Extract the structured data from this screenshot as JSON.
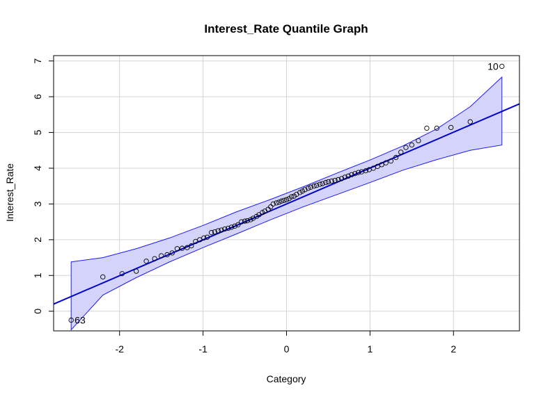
{
  "chart_data": {
    "type": "scatter",
    "title": "Interest_Rate Quantile Graph",
    "xlabel": "Category",
    "ylabel": "Interest_Rate",
    "xlim": [
      -2.79,
      2.79
    ],
    "ylim": [
      -0.55,
      7.15
    ],
    "xticks": [
      -2,
      -1,
      0,
      1,
      2
    ],
    "yticks": [
      0,
      1,
      2,
      3,
      4,
      5,
      6,
      7
    ],
    "grid": true,
    "colors": {
      "band_fill": "#d4d4fa",
      "band_line": "#1a1aff",
      "line": "#0000cc",
      "points": "#000000",
      "grid": "#d3d3d3"
    },
    "reference_line": {
      "x": [
        -2.79,
        2.79
      ],
      "y": [
        0.2,
        5.8
      ]
    },
    "confidence_band": {
      "x": [
        -2.58,
        -2.2,
        -1.8,
        -1.4,
        -1.0,
        -0.6,
        -0.2,
        0.2,
        0.6,
        1.0,
        1.4,
        1.8,
        2.2,
        2.58
      ],
      "upper": [
        1.38,
        1.5,
        1.75,
        2.05,
        2.4,
        2.78,
        3.12,
        3.48,
        3.86,
        4.23,
        4.63,
        5.1,
        5.72,
        6.55
      ],
      "lower": [
        -0.52,
        0.45,
        0.94,
        1.38,
        1.78,
        2.16,
        2.55,
        2.92,
        3.26,
        3.6,
        3.95,
        4.24,
        4.5,
        4.65
      ]
    },
    "points": {
      "x": [
        -2.58,
        -2.2,
        -1.97,
        -1.8,
        -1.68,
        -1.58,
        -1.5,
        -1.43,
        -1.37,
        -1.31,
        -1.25,
        -1.19,
        -1.14,
        -1.09,
        -1.04,
        -0.99,
        -0.95,
        -0.9,
        -0.86,
        -0.82,
        -0.78,
        -0.74,
        -0.7,
        -0.66,
        -0.62,
        -0.58,
        -0.54,
        -0.5,
        -0.47,
        -0.43,
        -0.4,
        -0.36,
        -0.33,
        -0.29,
        -0.26,
        -0.22,
        -0.19,
        -0.16,
        -0.12,
        -0.09,
        -0.06,
        -0.03,
        0.0,
        0.03,
        0.06,
        0.09,
        0.12,
        0.16,
        0.19,
        0.22,
        0.26,
        0.29,
        0.33,
        0.36,
        0.4,
        0.43,
        0.47,
        0.5,
        0.54,
        0.58,
        0.62,
        0.66,
        0.7,
        0.74,
        0.78,
        0.82,
        0.86,
        0.9,
        0.95,
        0.99,
        1.04,
        1.09,
        1.14,
        1.19,
        1.25,
        1.31,
        1.37,
        1.43,
        1.5,
        1.58,
        1.68,
        1.8,
        1.97,
        2.2,
        2.58
      ],
      "y": [
        -0.25,
        0.96,
        1.05,
        1.12,
        1.4,
        1.47,
        1.55,
        1.58,
        1.63,
        1.75,
        1.76,
        1.78,
        1.83,
        1.95,
        2.0,
        2.05,
        2.07,
        2.2,
        2.22,
        2.25,
        2.27,
        2.3,
        2.32,
        2.35,
        2.38,
        2.42,
        2.5,
        2.52,
        2.53,
        2.56,
        2.6,
        2.65,
        2.7,
        2.76,
        2.8,
        2.85,
        2.92,
        3.0,
        3.03,
        3.05,
        3.08,
        3.1,
        3.12,
        3.15,
        3.2,
        3.22,
        3.27,
        3.32,
        3.36,
        3.4,
        3.44,
        3.47,
        3.5,
        3.52,
        3.55,
        3.57,
        3.6,
        3.62,
        3.64,
        3.66,
        3.68,
        3.71,
        3.75,
        3.78,
        3.82,
        3.85,
        3.88,
        3.9,
        3.93,
        3.96,
        4.0,
        4.05,
        4.1,
        4.15,
        4.2,
        4.3,
        4.45,
        4.58,
        4.65,
        4.77,
        5.12,
        5.12,
        5.14,
        5.3,
        6.85
      ]
    },
    "annotations": [
      {
        "text": "10",
        "x": 2.58,
        "y": 6.85,
        "side": "left"
      },
      {
        "text": "63",
        "x": -2.58,
        "y": -0.25,
        "side": "right"
      }
    ]
  }
}
